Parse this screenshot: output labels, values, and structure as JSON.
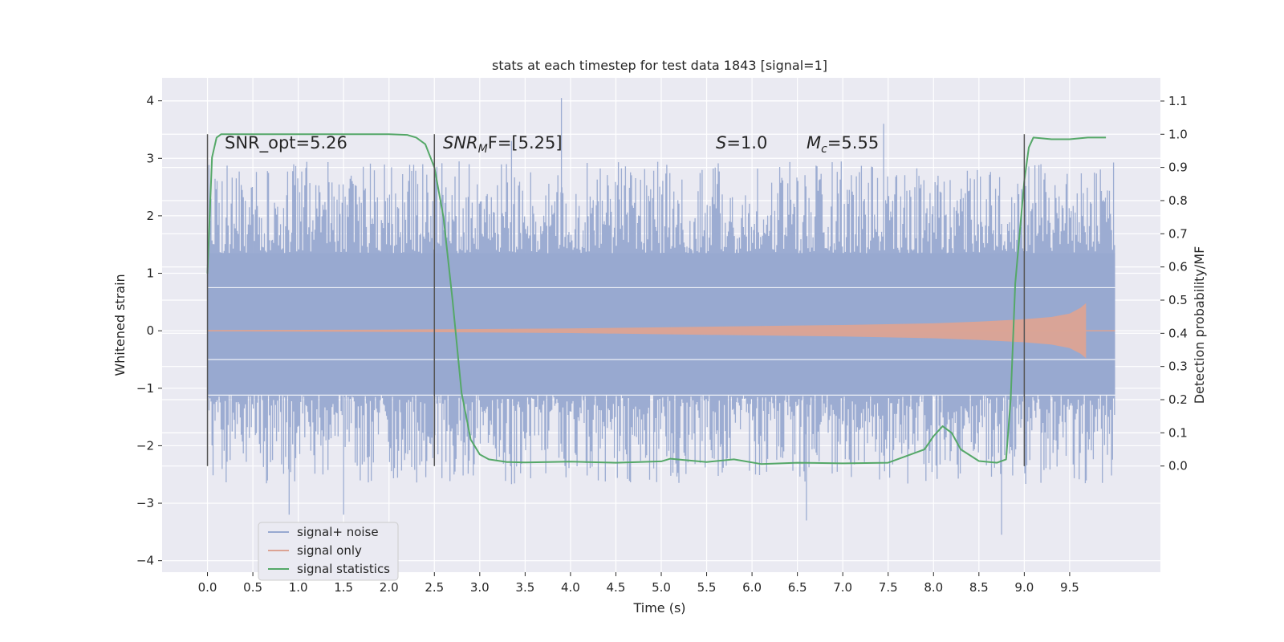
{
  "chart_data": {
    "type": "line",
    "title": "stats at each timestep for test data 1843 [signal=1]",
    "xlabel": "Time (s)",
    "ylabel": "Whitened strain",
    "ylabel_right": "Detection probability/MF",
    "xlim": [
      -0.5,
      10.5
    ],
    "ylim": [
      -4.2,
      4.4
    ],
    "ylim_right": [
      -0.32,
      1.17
    ],
    "x_ticks": [
      "0.0",
      "0.5",
      "1.0",
      "1.5",
      "2.0",
      "2.5",
      "3.0",
      "3.5",
      "4.0",
      "4.5",
      "5.0",
      "5.5",
      "6.0",
      "6.5",
      "7.0",
      "7.5",
      "8.0",
      "8.5",
      "9.0",
      "9.5"
    ],
    "y_ticks": [
      "4",
      "3",
      "2",
      "1",
      "0",
      "−1",
      "−2",
      "−3",
      "−4"
    ],
    "y_ticks_right": [
      "1.1",
      "1.0",
      "0.9",
      "0.8",
      "0.7",
      "0.6",
      "0.5",
      "0.4",
      "0.3",
      "0.2",
      "0.1",
      "0.0"
    ],
    "grid": true,
    "legend_position": "lower-left",
    "annotations": [
      {
        "text": "SNR_opt=5.26"
      },
      {
        "text": "SNRMF=[5.25]",
        "main": "SNR",
        "sub": "M",
        "rest": "F=[5.25]"
      },
      {
        "text": "S=1.0",
        "main": "S",
        "rest": "=1.0"
      },
      {
        "text": "Mc=5.55",
        "main": "M",
        "sub": "c",
        "rest": "=5.55"
      }
    ],
    "window_markers": [
      0.0,
      2.5,
      9.0
    ],
    "series": [
      {
        "name": "signal+ noise",
        "color": "#98a9d0",
        "kind": "noise-envelope",
        "x_range": [
          0.0,
          10.0
        ],
        "core_band": [
          -1.12,
          1.35
        ],
        "spike_max": 4.05,
        "spike_min": -3.55
      },
      {
        "name": "signal only",
        "color": "#dca394",
        "kind": "chirp-envelope",
        "x": [
          0.0,
          2.0,
          4.0,
          5.0,
          6.0,
          7.0,
          8.0,
          8.5,
          9.0,
          9.3,
          9.5,
          9.62,
          9.68
        ],
        "amplitude": [
          0.01,
          0.02,
          0.04,
          0.06,
          0.08,
          0.1,
          0.13,
          0.16,
          0.2,
          0.24,
          0.3,
          0.4,
          0.48
        ],
        "x_end": 10.0
      },
      {
        "name": "signal statistics",
        "color": "#55a868",
        "axis": "right",
        "x": [
          0.0,
          0.05,
          0.1,
          0.15,
          0.2,
          0.5,
          1.0,
          1.5,
          2.0,
          2.2,
          2.3,
          2.4,
          2.5,
          2.6,
          2.7,
          2.8,
          2.9,
          3.0,
          3.1,
          3.3,
          3.5,
          4.0,
          4.5,
          5.0,
          5.1,
          5.5,
          5.8,
          6.1,
          6.5,
          7.0,
          7.5,
          7.9,
          8.0,
          8.1,
          8.2,
          8.3,
          8.5,
          8.7,
          8.8,
          8.85,
          8.9,
          9.0,
          9.05,
          9.1,
          9.3,
          9.5,
          9.7,
          9.9
        ],
        "y": [
          0.58,
          0.93,
          0.99,
          1.0,
          1.0,
          1.0,
          1.0,
          1.0,
          1.0,
          0.998,
          0.99,
          0.97,
          0.9,
          0.75,
          0.5,
          0.22,
          0.08,
          0.035,
          0.02,
          0.012,
          0.011,
          0.013,
          0.01,
          0.014,
          0.022,
          0.012,
          0.02,
          0.006,
          0.01,
          0.008,
          0.01,
          0.05,
          0.09,
          0.12,
          0.1,
          0.05,
          0.015,
          0.01,
          0.02,
          0.2,
          0.55,
          0.86,
          0.96,
          0.99,
          0.985,
          0.985,
          0.99,
          0.99
        ]
      }
    ]
  }
}
